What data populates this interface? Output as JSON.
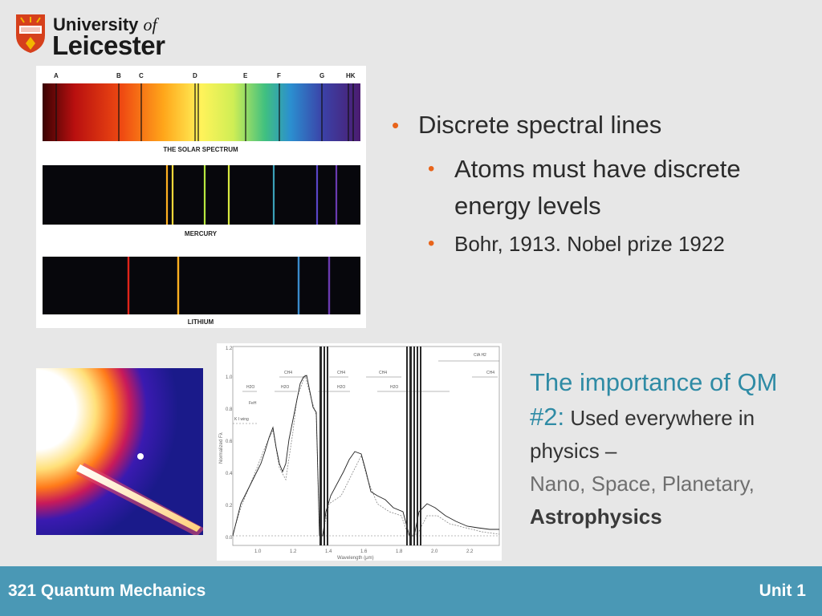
{
  "logo": {
    "line1": "University",
    "line1_italic": "of",
    "line2": "Leicester"
  },
  "bullets": {
    "main": "Discrete spectral lines",
    "sub1": "Atoms must have discrete energy levels",
    "sub2": "Bohr, 1913. Nobel prize 1922"
  },
  "spectra": {
    "letters": [
      "A",
      "B",
      "C",
      "D",
      "E",
      "F",
      "G",
      "HK"
    ],
    "labels": [
      "THE SOLAR SPECTRUM",
      "MERCURY",
      "LITHIUM"
    ]
  },
  "plot": {
    "ylabel": "Normalized Fλ",
    "xlabel": "Wavelength (μm)",
    "yticks": [
      "1.2",
      "1.0",
      "0.8",
      "0.6",
      "0.4",
      "0.2",
      "0.0"
    ],
    "xticks": [
      "1.0",
      "1.2",
      "1.4",
      "1.6",
      "1.8",
      "2.0",
      "2.2"
    ],
    "annotations": [
      "CH4",
      "CH4",
      "CH4",
      "CH4",
      "H2O",
      "H2O",
      "H2O",
      "H2O",
      "FeH",
      "K I wing",
      "CIA H2"
    ]
  },
  "note": {
    "title": "The importance of QM #2:",
    "text1": "Used everywhere in physics –",
    "text2": "Nano, Space, Planetary,",
    "text3": "Astrophysics"
  },
  "footer": {
    "left": "321 Quantum Mechanics",
    "right": "Unit 1"
  },
  "colors": {
    "accent_blue": "#2f8ba5",
    "bullet_orange": "#e8641b",
    "footer_bg": "#4a98b5"
  }
}
